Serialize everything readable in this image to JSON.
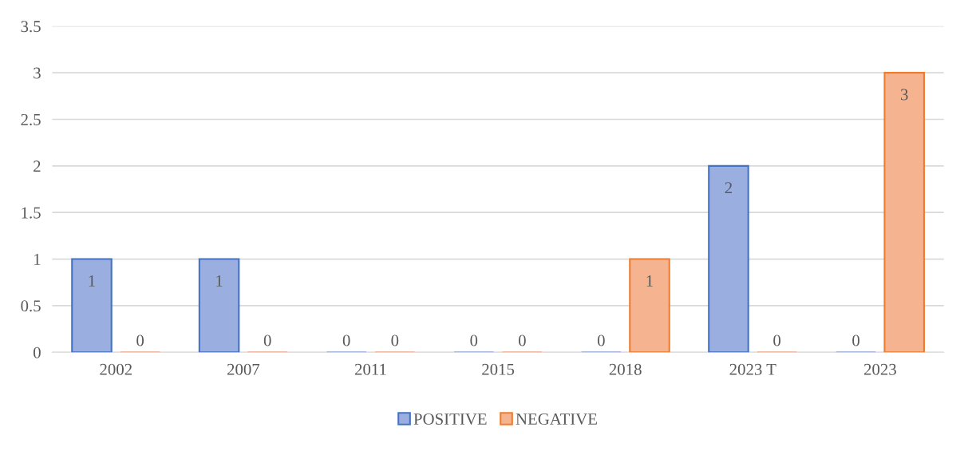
{
  "chart_data": {
    "type": "bar",
    "categories": [
      "2002",
      "2007",
      "2011",
      "2015",
      "2018",
      "2023 T",
      "2023"
    ],
    "series": [
      {
        "name": "POSITIVE",
        "color": "#9aafe0",
        "values": [
          1,
          1,
          0,
          0,
          0,
          2,
          0
        ]
      },
      {
        "name": "NEGATIVE",
        "color": "#f5b390",
        "values": [
          0,
          0,
          0,
          0,
          1,
          0,
          3
        ]
      }
    ],
    "ylim": [
      0,
      3.5
    ],
    "yticks": [
      0,
      0.5,
      1,
      1.5,
      2,
      2.5,
      3,
      3.5
    ],
    "grid": "y",
    "legend": "bottom",
    "data_labels": true
  }
}
